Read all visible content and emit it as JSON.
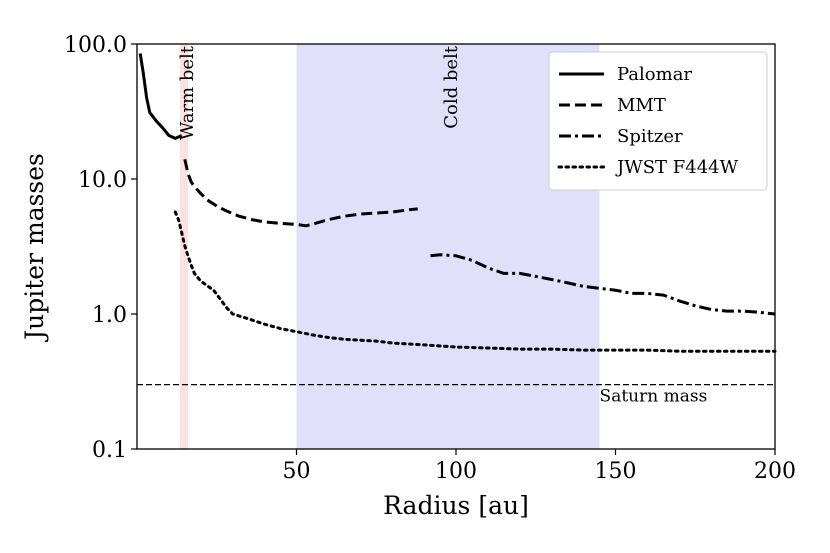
{
  "chart_data": {
    "type": "line",
    "title": "",
    "xlabel": "Radius [au]",
    "ylabel": "Jupiter masses",
    "xlim": [
      0,
      200
    ],
    "ylim": [
      0.1,
      100
    ],
    "yscale": "log",
    "grid": false,
    "legend_position": "top-right",
    "xticks": [
      50,
      100,
      150,
      200
    ],
    "xtick_labels": [
      "50",
      "100",
      "150",
      "200"
    ],
    "yticks": [
      0.1,
      1,
      10,
      100
    ],
    "ytick_labels": [
      "0.1",
      "1.0",
      "10.0",
      "100.0"
    ],
    "regions": [
      {
        "label": "Warm belt",
        "x_start": 13.5,
        "x_end": 16,
        "color": "#fde0e0"
      },
      {
        "label": "Cold belt",
        "x_start": 50,
        "x_end": 145,
        "color": "#e0e0fb"
      }
    ],
    "reference_lines": [
      {
        "label": "Saturn mass",
        "y": 0.3,
        "style": "dashed"
      }
    ],
    "series": [
      {
        "name": "Palomar",
        "style": "solid",
        "x": [
          1,
          2,
          3,
          4,
          5,
          6,
          8,
          10,
          12,
          14
        ],
        "y": [
          85,
          60,
          40,
          31,
          29,
          27,
          24,
          21,
          20,
          21
        ]
      },
      {
        "name": "MMT",
        "style": "dashed",
        "x": [
          15,
          16,
          17,
          18,
          20,
          22,
          25,
          28,
          32,
          36,
          40,
          45,
          50,
          53,
          56,
          60,
          65,
          70,
          75,
          80,
          85,
          88
        ],
        "y": [
          14,
          11,
          9.5,
          8.8,
          7.8,
          7.0,
          6.3,
          5.8,
          5.3,
          5.0,
          4.8,
          4.7,
          4.6,
          4.5,
          4.7,
          5.0,
          5.3,
          5.5,
          5.6,
          5.7,
          5.9,
          6.0
        ]
      },
      {
        "name": "Spitzer",
        "style": "dashdot",
        "x": [
          92,
          95,
          100,
          105,
          110,
          115,
          120,
          125,
          130,
          135,
          140,
          145,
          150,
          155,
          160,
          165,
          170,
          175,
          180,
          185,
          190,
          195,
          200
        ],
        "y": [
          2.7,
          2.75,
          2.7,
          2.5,
          2.2,
          2.0,
          2.0,
          1.9,
          1.8,
          1.7,
          1.6,
          1.55,
          1.5,
          1.42,
          1.42,
          1.38,
          1.25,
          1.15,
          1.08,
          1.05,
          1.05,
          1.03,
          1.0
        ]
      },
      {
        "name": "JWST F444W",
        "style": "dotted",
        "x": [
          12,
          13,
          14,
          15,
          16,
          17,
          18,
          20,
          22,
          24,
          26,
          28,
          30,
          35,
          40,
          45,
          50,
          55,
          60,
          65,
          70,
          75,
          80,
          90,
          100,
          110,
          120,
          130,
          140,
          150,
          160,
          170,
          180,
          190,
          200
        ],
        "y": [
          5.7,
          5.0,
          4.0,
          3.2,
          2.7,
          2.3,
          2.0,
          1.75,
          1.62,
          1.5,
          1.3,
          1.12,
          1.0,
          0.92,
          0.84,
          0.78,
          0.74,
          0.7,
          0.67,
          0.65,
          0.64,
          0.63,
          0.61,
          0.59,
          0.57,
          0.56,
          0.55,
          0.55,
          0.54,
          0.54,
          0.54,
          0.53,
          0.53,
          0.53,
          0.53
        ]
      }
    ]
  }
}
